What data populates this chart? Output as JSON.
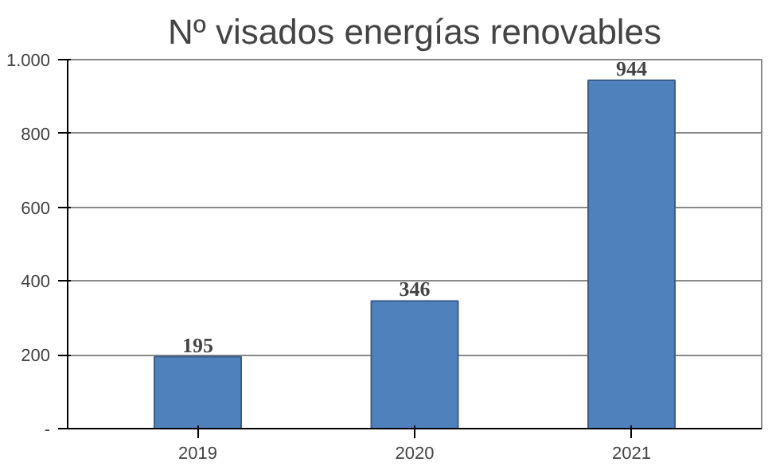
{
  "chart_data": {
    "type": "bar",
    "title": "Nº visados energías renovables",
    "categories": [
      "2019",
      "2020",
      "2021"
    ],
    "values": [
      195,
      346,
      944
    ],
    "color": "#4f81bd",
    "ylim": [
      0,
      1000
    ],
    "yticks": [
      {
        "value": 0,
        "label": "-"
      },
      200,
      400,
      600,
      800,
      {
        "value": 1000,
        "label": "1.000"
      }
    ],
    "grid": "y",
    "data_labels": true
  }
}
